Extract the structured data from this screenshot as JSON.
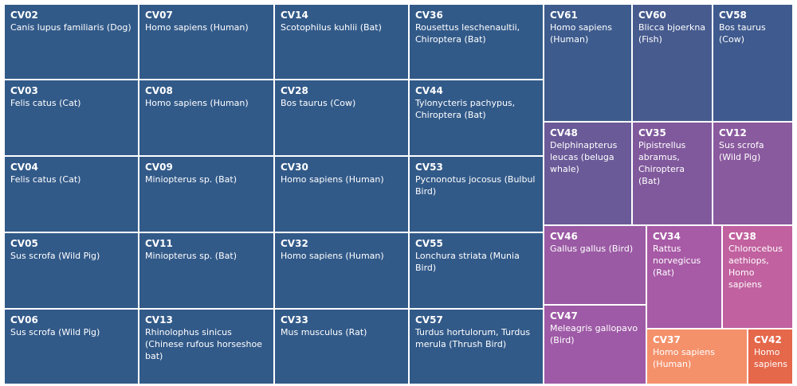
{
  "chart_data": {
    "type": "treemap",
    "title": "",
    "items": [
      {
        "code": "CV02",
        "species": "Canis lupus familiaris (Dog)",
        "color": "#325a89"
      },
      {
        "code": "CV03",
        "species": "Felis catus (Cat)",
        "color": "#325a89"
      },
      {
        "code": "CV04",
        "species": "Felis catus (Cat)",
        "color": "#325a89"
      },
      {
        "code": "CV05",
        "species": "Sus scrofa (Wild Pig)",
        "color": "#325a89"
      },
      {
        "code": "CV06",
        "species": "Sus scrofa (Wild Pig)",
        "color": "#325a89"
      },
      {
        "code": "CV07",
        "species": "Homo sapiens (Human)",
        "color": "#325a89"
      },
      {
        "code": "CV08",
        "species": "Homo sapiens (Human)",
        "color": "#325a89"
      },
      {
        "code": "CV09",
        "species": "Miniopterus sp. (Bat)",
        "color": "#325a89"
      },
      {
        "code": "CV11",
        "species": "Miniopterus sp. (Bat)",
        "color": "#325a89"
      },
      {
        "code": "CV13",
        "species": "Rhinolophus sinicus (Chinese rufous horseshoe bat)",
        "color": "#325a89"
      },
      {
        "code": "CV14",
        "species": "Scotophilus kuhlii (Bat)",
        "color": "#325a89"
      },
      {
        "code": "CV28",
        "species": "Bos taurus (Cow)",
        "color": "#325a89"
      },
      {
        "code": "CV30",
        "species": "Homo sapiens (Human)",
        "color": "#325a89"
      },
      {
        "code": "CV32",
        "species": "Homo sapiens (Human)",
        "color": "#325a89"
      },
      {
        "code": "CV33",
        "species": "Mus musculus (Rat)",
        "color": "#325a89"
      },
      {
        "code": "CV36",
        "species": "Rousettus leschenaultii, Chiroptera (Bat)",
        "color": "#325a89"
      },
      {
        "code": "CV44",
        "species": "Tylonycteris pachypus, Chiroptera (Bat)",
        "color": "#325a89"
      },
      {
        "code": "CV53",
        "species": "Pycnonotus jocosus (Bulbul Bird)",
        "color": "#325a89"
      },
      {
        "code": "CV55",
        "species": "Lonchura striata (Munia Bird)",
        "color": "#325a89"
      },
      {
        "code": "CV57",
        "species": "Turdus hortulorum, Turdus merula (Thrush Bird)",
        "color": "#325a89"
      },
      {
        "code": "CV61",
        "species": "Homo sapiens (Human)",
        "color": "#3d5b8d"
      },
      {
        "code": "CV60",
        "species": "Blicca bjoerkna (Fish)",
        "color": "#475b8f"
      },
      {
        "code": "CV58",
        "species": "Bos taurus (Cow)",
        "color": "#3f5a8e"
      },
      {
        "code": "CV48",
        "species": "Delphinapterus leucas (beluga whale)",
        "color": "#6a5a98"
      },
      {
        "code": "CV35",
        "species": "Pipistrellus abramus, Chiroptera (Bat)",
        "color": "#80599c"
      },
      {
        "code": "CV12",
        "species": "Sus scrofa (Wild Pig)",
        "color": "#8a5a9e"
      },
      {
        "code": "CV46",
        "species": "Gallus gallus (Bird)",
        "color": "#9a5aa4"
      },
      {
        "code": "CV34",
        "species": "Rattus norvegicus (Rat)",
        "color": "#a75aa6"
      },
      {
        "code": "CV38",
        "species": "Chlorocebus aethiops, Homo sapiens",
        "color": "#c1619f"
      },
      {
        "code": "CV47",
        "species": "Meleagris gallopavo (Bird)",
        "color": "#9e5aa6"
      },
      {
        "code": "CV37",
        "species": "Homo sapiens (Human)",
        "color": "#f4916b"
      },
      {
        "code": "CV42",
        "species": "Homo sapiens",
        "color": "#e5684b"
      }
    ]
  }
}
